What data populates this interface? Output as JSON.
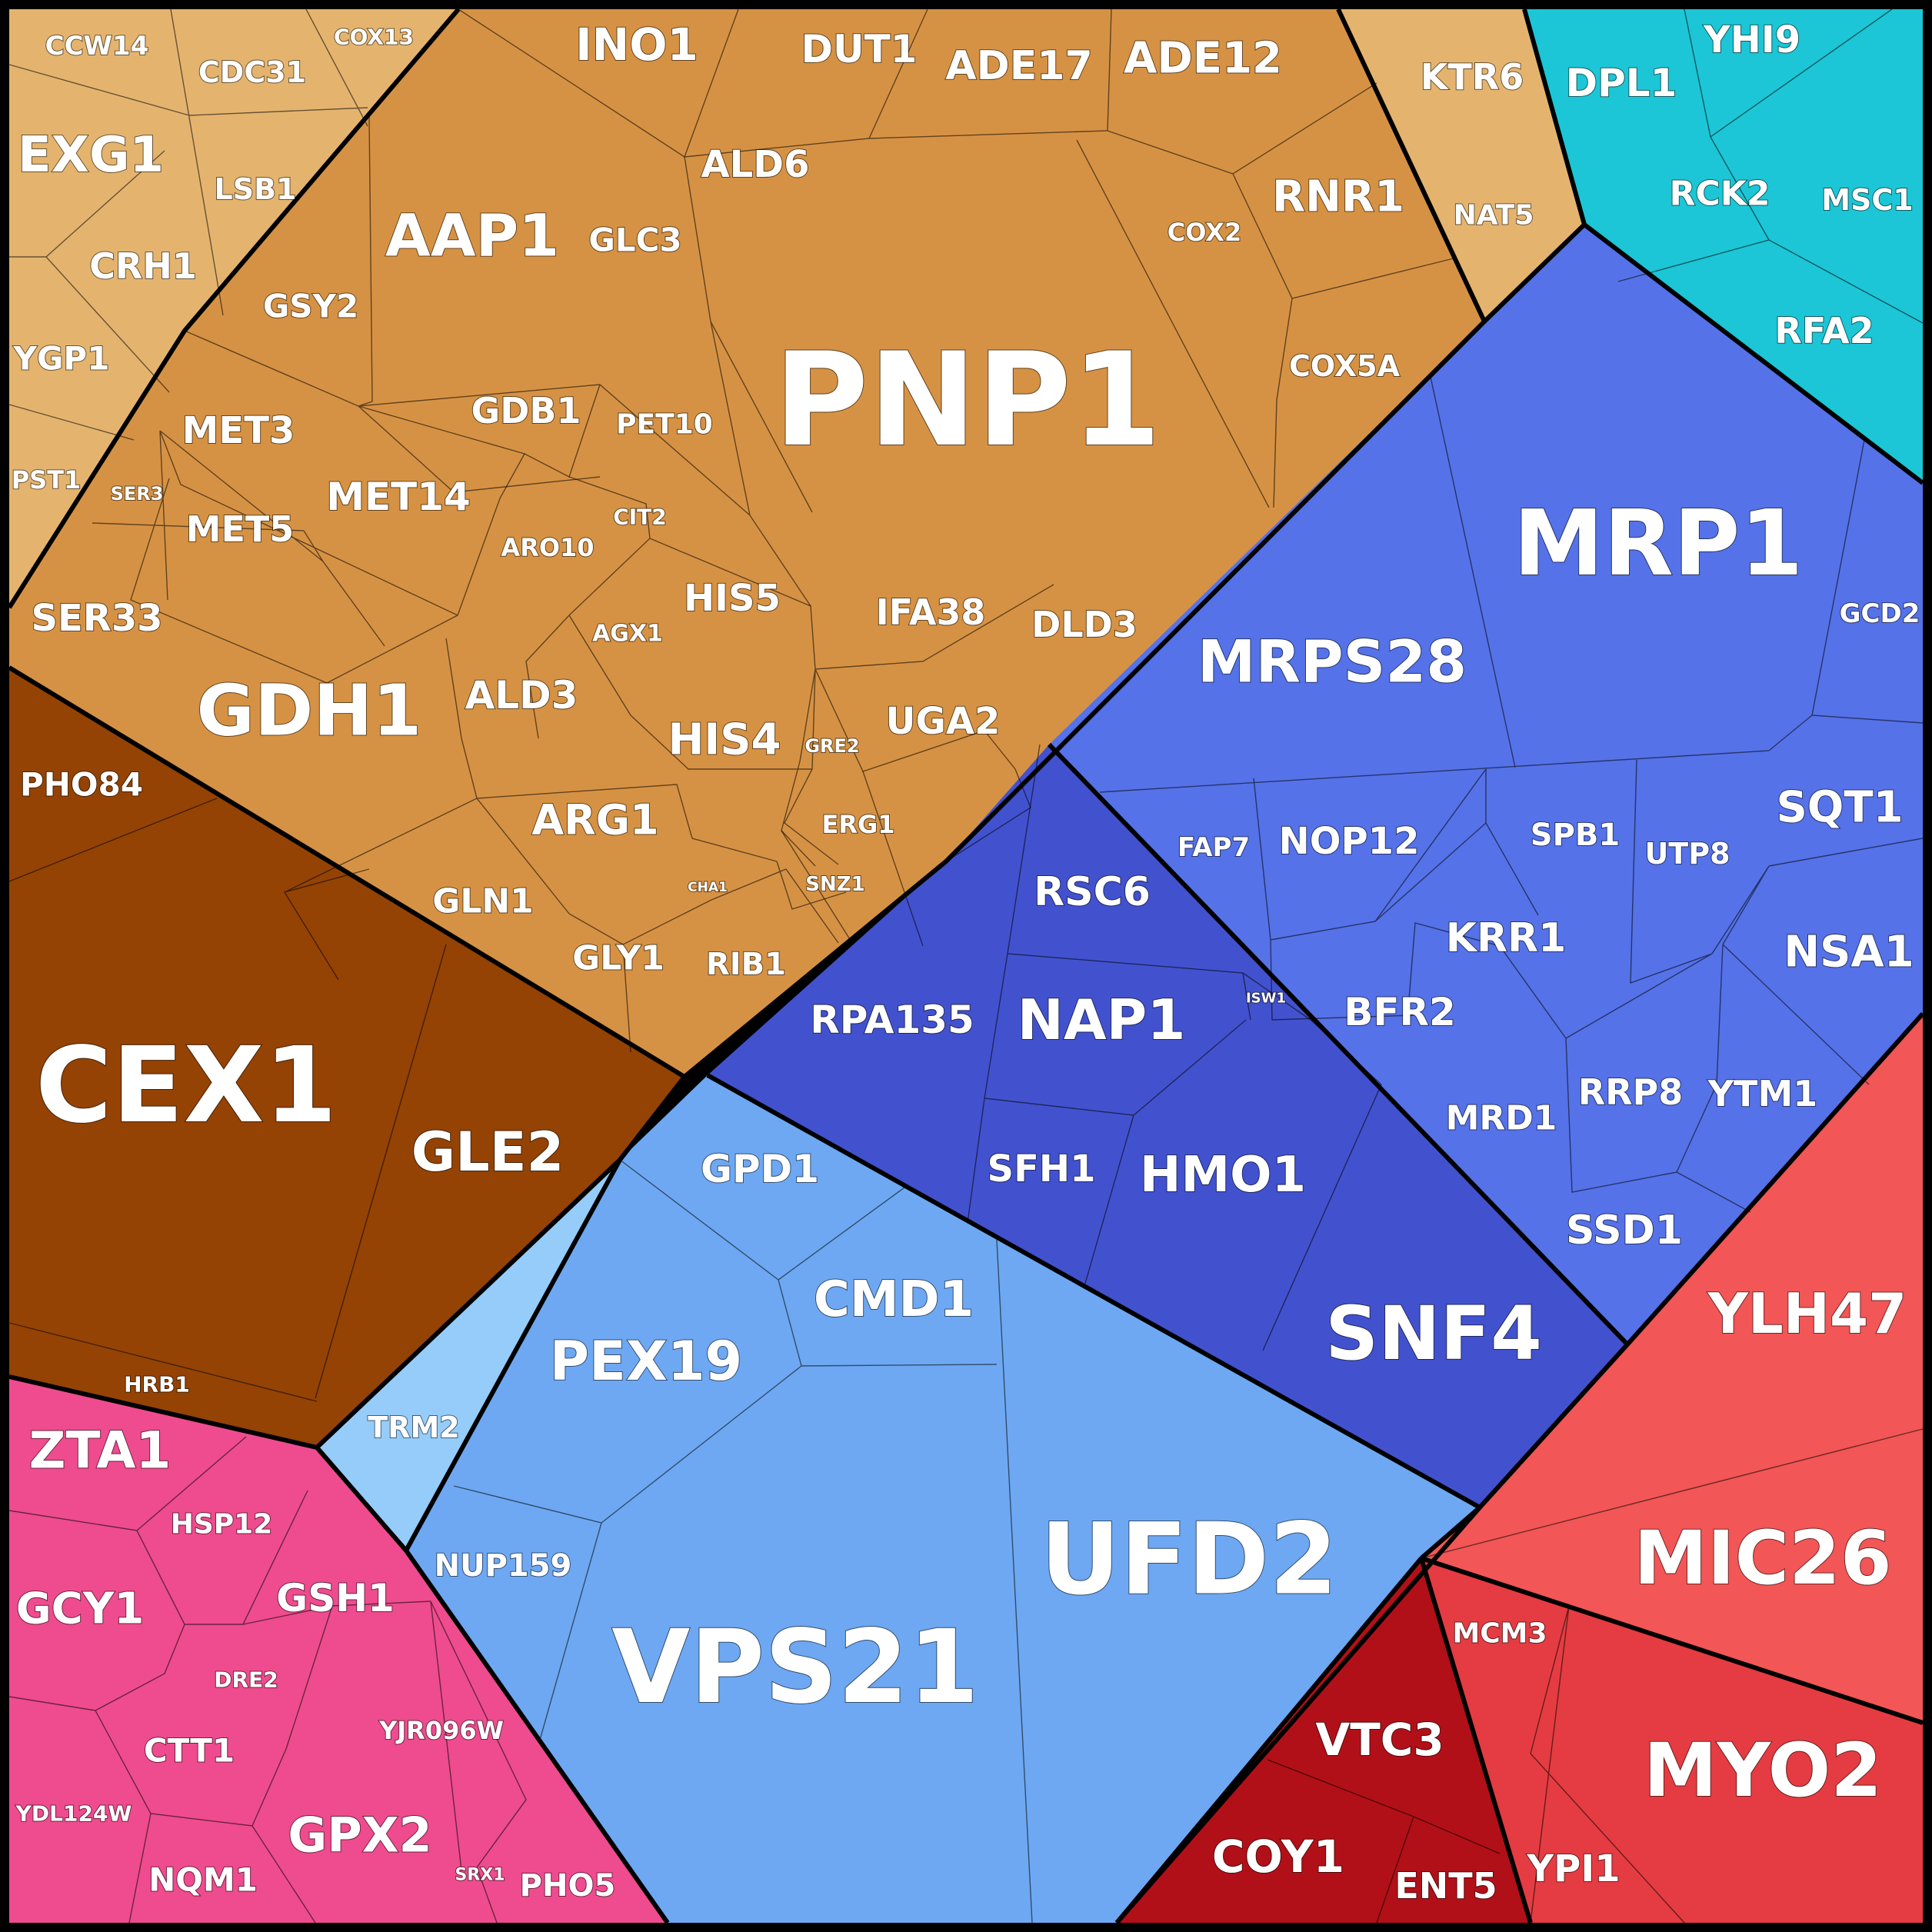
{
  "colors": {
    "tan": "#E4B46F",
    "orange": "#D69244",
    "brown": "#944304",
    "cyan": "#1CC6D6",
    "blue": "#5572E8",
    "darkblue": "#4252CE",
    "lightblue": "#6EA8F2",
    "paleblue": "#96CCFA",
    "red": "#F25656",
    "crimson": "#E43C42",
    "darkred": "#B21018",
    "pink": "#EE4C8E"
  },
  "labels": [
    {
      "text": "PNP1",
      "color": "orange"
    },
    {
      "text": "INO1",
      "color": "orange"
    },
    {
      "text": "DUT1",
      "color": "orange"
    },
    {
      "text": "ADE17",
      "color": "orange"
    },
    {
      "text": "ADE12",
      "color": "orange"
    },
    {
      "text": "ALD6",
      "color": "orange"
    },
    {
      "text": "RNR1",
      "color": "orange"
    },
    {
      "text": "COX2",
      "color": "orange"
    },
    {
      "text": "COX5A",
      "color": "orange"
    },
    {
      "text": "AAP1",
      "color": "orange"
    },
    {
      "text": "GLC3",
      "color": "orange"
    },
    {
      "text": "GSY2",
      "color": "orange"
    },
    {
      "text": "GDB1",
      "color": "orange"
    },
    {
      "text": "PET10",
      "color": "orange"
    },
    {
      "text": "MET3",
      "color": "orange"
    },
    {
      "text": "SER3",
      "color": "orange"
    },
    {
      "text": "MET5",
      "color": "orange"
    },
    {
      "text": "MET14",
      "color": "orange"
    },
    {
      "text": "ARO10",
      "color": "orange"
    },
    {
      "text": "CIT2",
      "color": "orange"
    },
    {
      "text": "HIS5",
      "color": "orange"
    },
    {
      "text": "AGX1",
      "color": "orange"
    },
    {
      "text": "IFA38",
      "color": "orange"
    },
    {
      "text": "DLD3",
      "color": "orange"
    },
    {
      "text": "SER33",
      "color": "orange"
    },
    {
      "text": "GDH1",
      "color": "orange"
    },
    {
      "text": "ALD3",
      "color": "orange"
    },
    {
      "text": "HIS4",
      "color": "orange"
    },
    {
      "text": "GRE2",
      "color": "orange"
    },
    {
      "text": "UGA2",
      "color": "orange"
    },
    {
      "text": "ARG1",
      "color": "orange"
    },
    {
      "text": "ERG1",
      "color": "orange"
    },
    {
      "text": "GLN1",
      "color": "orange"
    },
    {
      "text": "CHA1",
      "color": "orange"
    },
    {
      "text": "SNZ1",
      "color": "orange"
    },
    {
      "text": "GLY1",
      "color": "orange"
    },
    {
      "text": "RIB1",
      "color": "orange"
    },
    {
      "text": "CCW14",
      "color": "tan"
    },
    {
      "text": "CDC31",
      "color": "tan"
    },
    {
      "text": "COX13",
      "color": "tan"
    },
    {
      "text": "EXG1",
      "color": "tan"
    },
    {
      "text": "LSB1",
      "color": "tan"
    },
    {
      "text": "CRH1",
      "color": "tan"
    },
    {
      "text": "YGP1",
      "color": "tan"
    },
    {
      "text": "PST1",
      "color": "tan"
    },
    {
      "text": "KTR6",
      "color": "tan"
    },
    {
      "text": "NAT5",
      "color": "tan"
    },
    {
      "text": "DPL1",
      "color": "cyan"
    },
    {
      "text": "YHI9",
      "color": "cyan"
    },
    {
      "text": "RCK2",
      "color": "cyan"
    },
    {
      "text": "MSC1",
      "color": "cyan"
    },
    {
      "text": "RFA2",
      "color": "cyan"
    },
    {
      "text": "MRP1",
      "color": "blue"
    },
    {
      "text": "GCD2",
      "color": "blue"
    },
    {
      "text": "MRPS28",
      "color": "blue"
    },
    {
      "text": "SQT1",
      "color": "blue"
    },
    {
      "text": "FAP7",
      "color": "blue"
    },
    {
      "text": "NOP12",
      "color": "blue"
    },
    {
      "text": "SPB1",
      "color": "blue"
    },
    {
      "text": "UTP8",
      "color": "blue"
    },
    {
      "text": "KRR1",
      "color": "blue"
    },
    {
      "text": "NSA1",
      "color": "blue"
    },
    {
      "text": "BFR2",
      "color": "blue"
    },
    {
      "text": "RRP8",
      "color": "blue"
    },
    {
      "text": "YTM1",
      "color": "blue"
    },
    {
      "text": "MRD1",
      "color": "blue"
    },
    {
      "text": "SSD1",
      "color": "blue"
    },
    {
      "text": "RSC6",
      "color": "darkblue"
    },
    {
      "text": "NAP1",
      "color": "darkblue"
    },
    {
      "text": "ISW1",
      "color": "darkblue"
    },
    {
      "text": "RPA135",
      "color": "darkblue"
    },
    {
      "text": "SFH1",
      "color": "darkblue"
    },
    {
      "text": "HMO1",
      "color": "darkblue"
    },
    {
      "text": "SNF4",
      "color": "darkblue"
    },
    {
      "text": "PHO84",
      "color": "brown"
    },
    {
      "text": "CEX1",
      "color": "brown"
    },
    {
      "text": "GLE2",
      "color": "brown"
    },
    {
      "text": "HRB1",
      "color": "brown"
    },
    {
      "text": "GPD1",
      "color": "lightblue"
    },
    {
      "text": "CMD1",
      "color": "lightblue"
    },
    {
      "text": "PEX19",
      "color": "lightblue"
    },
    {
      "text": "TRM2",
      "color": "paleblue"
    },
    {
      "text": "NUP159",
      "color": "lightblue"
    },
    {
      "text": "VPS21",
      "color": "lightblue"
    },
    {
      "text": "UFD2",
      "color": "lightblue"
    },
    {
      "text": "YLH47",
      "color": "red"
    },
    {
      "text": "MIC26",
      "color": "red"
    },
    {
      "text": "MCM3",
      "color": "crimson"
    },
    {
      "text": "MYO2",
      "color": "crimson"
    },
    {
      "text": "YPI1",
      "color": "crimson"
    },
    {
      "text": "VTC3",
      "color": "darkred"
    },
    {
      "text": "COY1",
      "color": "darkred"
    },
    {
      "text": "ENT5",
      "color": "darkred"
    },
    {
      "text": "ZTA1",
      "color": "pink"
    },
    {
      "text": "HSP12",
      "color": "pink"
    },
    {
      "text": "GCY1",
      "color": "pink"
    },
    {
      "text": "GSH1",
      "color": "pink"
    },
    {
      "text": "DRE2",
      "color": "pink"
    },
    {
      "text": "YJR096W",
      "color": "pink"
    },
    {
      "text": "CTT1",
      "color": "pink"
    },
    {
      "text": "YDL124W",
      "color": "pink"
    },
    {
      "text": "GPX2",
      "color": "pink"
    },
    {
      "text": "NQM1",
      "color": "pink"
    },
    {
      "text": "SRX1",
      "color": "pink"
    },
    {
      "text": "PHO5",
      "color": "pink"
    }
  ]
}
